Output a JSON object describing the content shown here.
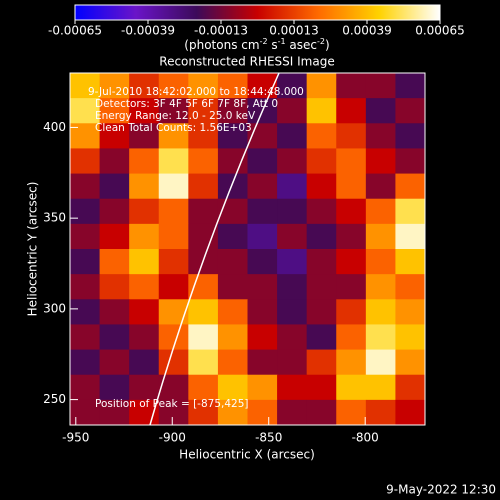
{
  "chart_data": {
    "type": "heatmap",
    "title": "Reconstructed RHESSI Image",
    "x_label": "Heliocentric X (arcsec)",
    "y_label": "Heliocentric Y (arcsec)",
    "colorbar_label": [
      "(photons cm",
      "-2",
      " s",
      "-1",
      " asec",
      "-2",
      ")"
    ],
    "colors": [
      "#0000ff",
      "#6a14c8",
      "#3c0a5a",
      "#c80000",
      "#ff6a00",
      "#ffd200",
      "#ffffff"
    ],
    "zlim": [
      -0.00065,
      0.00065
    ],
    "zticks": [
      -0.00065,
      -0.00039,
      -0.00013,
      0.00013,
      0.00039,
      0.00065
    ],
    "xlim": [
      -953,
      -769
    ],
    "xticks": [
      -950,
      -900,
      -850,
      -800
    ],
    "ylim": [
      236,
      430
    ],
    "yticks": [
      250,
      300,
      350,
      400
    ],
    "annotations": [
      "9-Jul-2010 18:42:02.000 to 18:44:48.000",
      "Detectors: 3F 4F 5F 6F 7F 8F, Att 0",
      "Energy Range: 12.0 - 25.0 keV",
      "Clean     Total Counts: 1.56E+03",
      "Position of Peak = [-875,425]"
    ],
    "footer": "9-May-2022 12:30",
    "z": [
      [
        0.0004,
        0.0003,
        0.0001,
        0.0002,
        0.0003,
        0.0002,
        0.0,
        -0.0002,
        0.0003,
        -0.0001,
        -0.0001,
        -0.0002
      ],
      [
        0.0005,
        0.0002,
        0.0,
        -0.0001,
        0.0001,
        -0.0001,
        -0.0002,
        -0.0001,
        0.0004,
        0.0,
        -0.0002,
        -0.0001
      ],
      [
        0.0003,
        0.0,
        -0.0001,
        0.0003,
        0.0001,
        -0.0002,
        -0.0001,
        -0.0002,
        0.0002,
        0.0001,
        -0.0001,
        -0.0002
      ],
      [
        0.0001,
        -0.0001,
        0.0002,
        0.0005,
        0.0002,
        -0.0001,
        -0.0002,
        -0.0001,
        0.0001,
        0.0002,
        0.0,
        -0.0001
      ],
      [
        -0.0001,
        -0.0002,
        0.0003,
        0.0006,
        0.0001,
        -0.0002,
        -0.0001,
        -0.0003,
        0.0,
        0.0002,
        -0.0001,
        0.0002
      ],
      [
        -0.0002,
        -0.0001,
        0.0001,
        0.0002,
        -0.0001,
        -0.0001,
        -0.0002,
        -0.0002,
        -0.0001,
        0.0,
        0.0002,
        0.0005
      ],
      [
        -0.0001,
        0.0,
        0.0003,
        0.0002,
        -0.0001,
        -0.0002,
        -0.0003,
        -0.0001,
        -0.0002,
        -0.0001,
        0.0003,
        0.0006
      ],
      [
        -0.0002,
        0.0002,
        0.0004,
        0.0001,
        -0.0001,
        -0.0001,
        -0.0002,
        -0.0003,
        -0.0001,
        0.0,
        0.0002,
        0.0004
      ],
      [
        -0.0001,
        0.0001,
        0.0002,
        0.0,
        0.0002,
        -0.0001,
        -0.0001,
        -0.0002,
        -0.0001,
        -0.0001,
        0.0003,
        0.0002
      ],
      [
        -0.0002,
        -0.0001,
        0.0,
        0.0003,
        0.0004,
        0.0002,
        -0.0001,
        -0.0002,
        -0.0001,
        0.0001,
        0.0004,
        0.0003
      ],
      [
        -0.0001,
        -0.0002,
        -0.0001,
        0.0002,
        0.0006,
        0.0003,
        0.0,
        -0.0001,
        -0.0002,
        0.0002,
        0.0005,
        0.0004
      ],
      [
        -0.0002,
        -0.0001,
        -0.0002,
        0.0001,
        0.0005,
        0.0002,
        -0.0001,
        -0.0001,
        0.0001,
        0.0003,
        0.0006,
        0.0003
      ],
      [
        -0.0001,
        -0.0002,
        -0.0001,
        -0.0001,
        0.0002,
        0.0004,
        0.0003,
        0.0,
        0.0,
        0.0004,
        0.0004,
        0.0001
      ],
      [
        -0.0001,
        -0.0001,
        0.0,
        -0.0001,
        0.0001,
        0.0003,
        0.0002,
        -0.0001,
        -0.0001,
        0.0002,
        0.0001,
        0.0
      ]
    ]
  }
}
